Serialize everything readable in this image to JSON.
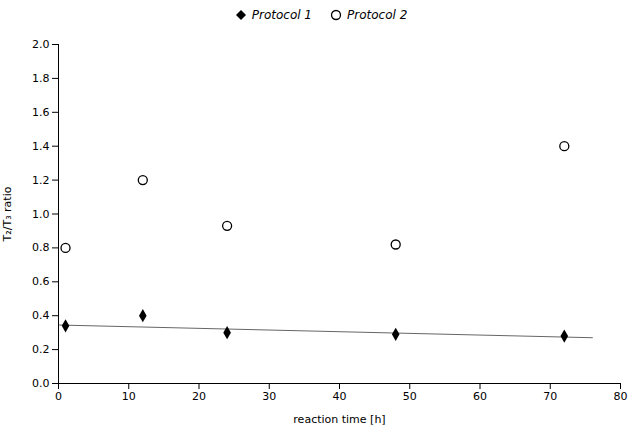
{
  "chart_data": {
    "type": "scatter",
    "xlabel": "reaction time [h]",
    "ylabel": "T₂/T₃ ratio",
    "series": [
      {
        "type": "line",
        "color": "#666666",
        "x": [
          0,
          76
        ],
        "values": [
          0.345,
          0.27
        ]
      },
      {
        "name": "Protocol 1",
        "type": "scatter",
        "marker": "diamond",
        "color": "#000000",
        "x": [
          1,
          12,
          24,
          48,
          72
        ],
        "values": [
          0.34,
          0.4,
          0.3,
          0.29,
          0.28
        ]
      },
      {
        "name": "Protocol 2",
        "type": "scatter",
        "marker": "open_circle",
        "color": "#000000",
        "x": [
          1,
          12,
          24,
          48,
          72
        ],
        "values": [
          0.8,
          1.2,
          0.93,
          0.82,
          1.4
        ]
      }
    ],
    "xlim": [
      0,
      80
    ],
    "ylim": [
      0,
      2.0
    ],
    "xticks": [
      0,
      10,
      20,
      30,
      40,
      50,
      60,
      70,
      80
    ],
    "yticks": [
      {
        "value": 0,
        "label": "0.0"
      },
      0.2,
      0.4,
      0.6,
      0.8,
      {
        "value": 1,
        "label": "1.0"
      },
      1.2,
      1.4,
      1.6,
      1.8,
      {
        "value": 2,
        "label": "2.0"
      }
    ],
    "legend": "top",
    "grid": false
  }
}
